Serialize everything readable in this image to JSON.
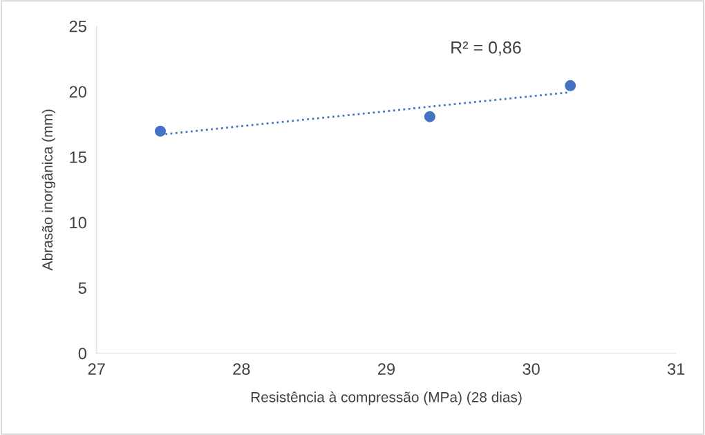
{
  "chart_data": {
    "type": "scatter",
    "xlabel": "Resistência à compressão (MPa) (28 dias)",
    "ylabel": "Abrasão inorgânica (mm)",
    "annotations": [
      "R² = 0,86"
    ],
    "xlim": [
      27,
      31
    ],
    "xticks": [
      27,
      28,
      29,
      30,
      31
    ],
    "ylim": [
      0,
      25
    ],
    "yticks": [
      0,
      5,
      10,
      15,
      20,
      25
    ],
    "grid": false,
    "legend": false,
    "marker": "circle",
    "series": [
      {
        "color": "#4472c4",
        "x": [
          27.44,
          29.3,
          30.27
        ],
        "values": [
          16.97,
          18.08,
          20.45
        ]
      },
      {
        "type": "line",
        "color": "#4472c4",
        "line_style": "dotted",
        "marker": "none",
        "x": [
          27.44,
          30.27
        ],
        "values": [
          16.71,
          19.95
        ]
      }
    ]
  }
}
